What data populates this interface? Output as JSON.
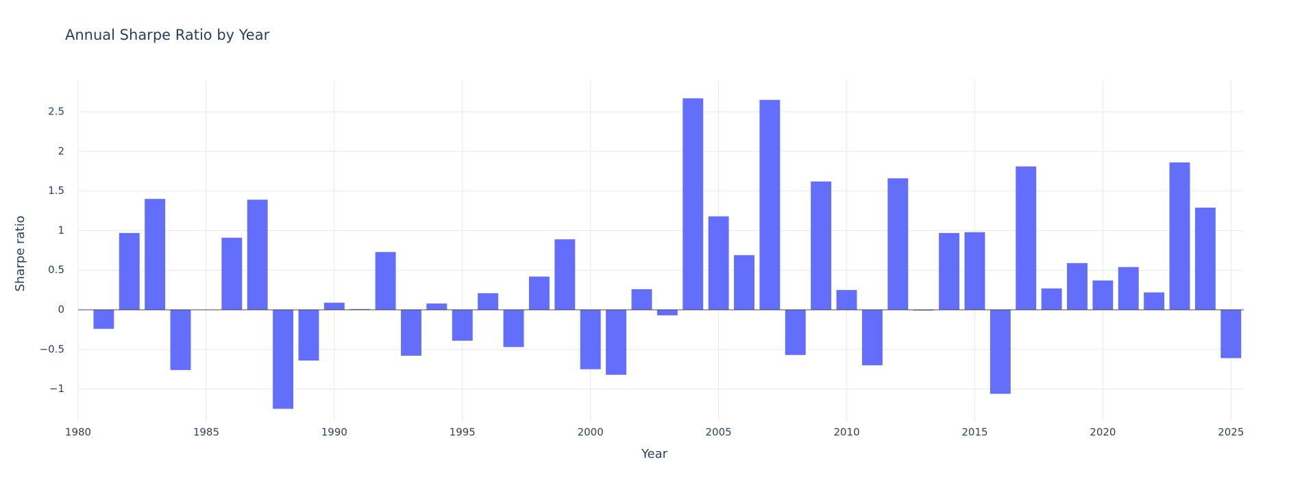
{
  "chart_data": {
    "type": "bar",
    "title": "Annual Sharpe Ratio by Year",
    "x_label": "Year",
    "y_label": "Sharpe ratio",
    "x": [
      1981,
      1982,
      1983,
      1984,
      1985,
      1986,
      1987,
      1988,
      1989,
      1990,
      1991,
      1992,
      1993,
      1994,
      1995,
      1996,
      1997,
      1998,
      1999,
      2000,
      2001,
      2002,
      2003,
      2004,
      2005,
      2006,
      2007,
      2008,
      2009,
      2010,
      2011,
      2012,
      2013,
      2014,
      2015,
      2016,
      2017,
      2018,
      2019,
      2020,
      2021,
      2022,
      2023,
      2024,
      2025
    ],
    "values": [
      -0.24,
      0.97,
      1.4,
      -0.76,
      0,
      0.91,
      1.39,
      -1.25,
      -0.64,
      0.09,
      0.01,
      0.73,
      -0.58,
      0.08,
      -0.39,
      0.21,
      -0.47,
      0.42,
      0.89,
      -0.75,
      -0.82,
      0.26,
      -0.07,
      2.67,
      1.18,
      0.69,
      2.65,
      -0.57,
      1.62,
      0.25,
      -0.7,
      1.66,
      -0.01,
      0.97,
      0.98,
      -1.06,
      1.81,
      0.27,
      0.59,
      0.37,
      0.54,
      0.22,
      1.86,
      1.29,
      -0.61
    ],
    "color": "#636efa",
    "xlim": [
      1980,
      2025.5
    ],
    "ylim": [
      -1.41,
      2.89
    ],
    "xticks": [
      1980,
      1985,
      1990,
      1995,
      2000,
      2005,
      2010,
      2015,
      2020,
      2025
    ],
    "yticks": [
      {
        "value": -1,
        "label": "−1"
      },
      {
        "value": -0.5,
        "label": "−0.5"
      },
      0,
      0.5,
      1,
      1.5,
      2,
      2.5
    ],
    "grid": true
  }
}
